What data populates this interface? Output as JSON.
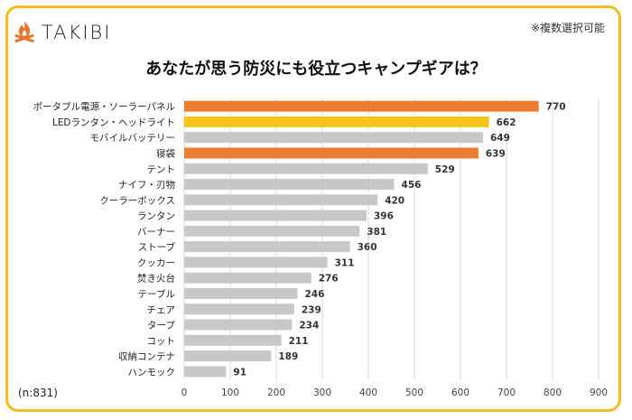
{
  "brand": {
    "name": "TAKIBI",
    "logo_icon": "campfire-icon",
    "logo_color": "#e8742a"
  },
  "note": "※複数選択可能",
  "sample_size": "(n:831)",
  "colors": {
    "highlight_orange": "#ed7d31",
    "highlight_yellow": "#f5c518",
    "default_gray": "#c8c8c8",
    "frame": "#f2bd1d"
  },
  "chart_data": {
    "type": "bar",
    "orientation": "horizontal",
    "title": "あなたが思う防災にも役立つキャンプギアは？",
    "categories": [
      "ポータブル電源・ソーラーパネル",
      "LEDランタン・ヘッドライト",
      "モバイルバッテリー",
      "寝袋",
      "テント",
      "ナイフ・刃物",
      "クーラーボックス",
      "ランタン",
      "バーナー",
      "ストーブ",
      "クッカー",
      "焚き火台",
      "テーブル",
      "チェア",
      "タープ",
      "コット",
      "収納コンテナ",
      "ハンモック"
    ],
    "values": [
      770,
      662,
      649,
      639,
      529,
      456,
      420,
      396,
      381,
      360,
      311,
      276,
      246,
      239,
      234,
      211,
      189,
      91
    ],
    "bar_colors": [
      "#ed7d31",
      "#f5c518",
      "#c8c8c8",
      "#ed7d31",
      "#c8c8c8",
      "#c8c8c8",
      "#c8c8c8",
      "#c8c8c8",
      "#c8c8c8",
      "#c8c8c8",
      "#c8c8c8",
      "#c8c8c8",
      "#c8c8c8",
      "#c8c8c8",
      "#c8c8c8",
      "#c8c8c8",
      "#c8c8c8",
      "#c8c8c8"
    ],
    "xlim": [
      0,
      900
    ],
    "xticks": [
      0,
      100,
      200,
      300,
      400,
      500,
      600,
      700,
      800,
      900
    ],
    "grid": "vertical"
  }
}
